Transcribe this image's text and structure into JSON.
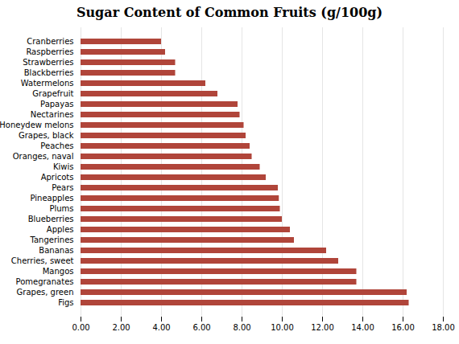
{
  "chart_data": {
    "type": "bar",
    "orientation": "horizontal",
    "title": "Sugar Content of Common Fruits (g/100g)",
    "categories": [
      "Cranberries",
      "Raspberries",
      "Strawberries",
      "Blackberries",
      "Watermelons",
      "Grapefruit",
      "Papayas",
      "Nectarines",
      "Honeydew melons",
      "Grapes, black",
      "Peaches",
      "Oranges, naval",
      "Kiwis",
      "Apricots",
      "Pears",
      "Pineapples",
      "Plums",
      "Blueberries",
      "Apples",
      "Tangerines",
      "Bananas",
      "Cherries, sweet",
      "Mangos",
      "Pomegranates",
      "Grapes, green",
      "Figs"
    ],
    "values": [
      4.0,
      4.2,
      4.7,
      4.7,
      6.2,
      6.8,
      7.8,
      7.9,
      8.1,
      8.2,
      8.4,
      8.5,
      8.9,
      9.2,
      9.8,
      9.85,
      9.9,
      10.0,
      10.4,
      10.6,
      12.2,
      12.8,
      13.7,
      13.7,
      16.2,
      16.3
    ],
    "color": "#b0453a",
    "xlim": [
      0,
      18
    ],
    "xticks": [
      {
        "value": 0,
        "label": "0.00"
      },
      {
        "value": 2,
        "label": "2.00"
      },
      {
        "value": 4,
        "label": "4.00"
      },
      {
        "value": 6,
        "label": "6.00"
      },
      {
        "value": 8,
        "label": "8.00"
      },
      {
        "value": 10,
        "label": "10.00"
      },
      {
        "value": 12,
        "label": "12.00"
      },
      {
        "value": 14,
        "label": "14.00"
      },
      {
        "value": 16,
        "label": "16.00"
      },
      {
        "value": 18,
        "label": "18.00"
      }
    ],
    "grid": true
  }
}
